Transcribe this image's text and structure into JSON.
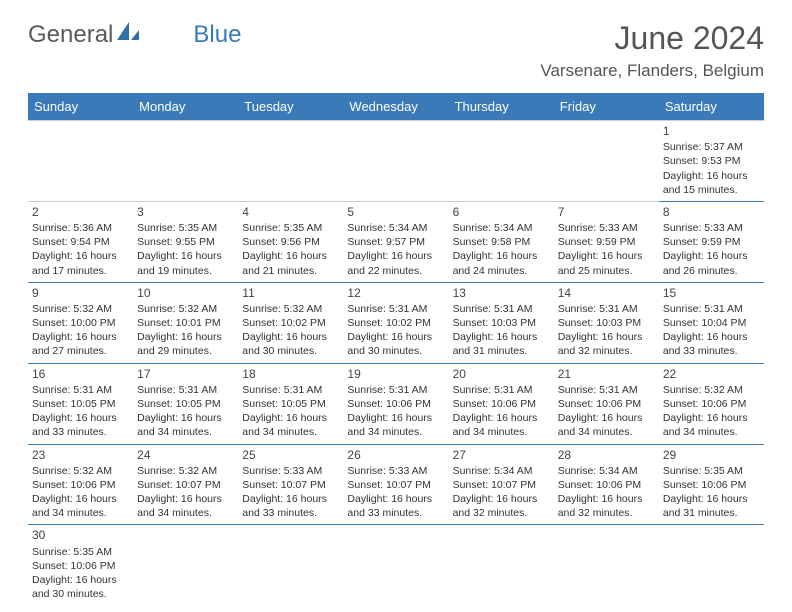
{
  "logo": {
    "text1": "General",
    "text2": "Blue"
  },
  "title": "June 2024",
  "location": "Varsenare, Flanders, Belgium",
  "colors": {
    "header_bg": "#3a7ab8",
    "header_text": "#ffffff",
    "border": "#3a7ab8",
    "text": "#333333",
    "title": "#555555"
  },
  "day_headers": [
    "Sunday",
    "Monday",
    "Tuesday",
    "Wednesday",
    "Thursday",
    "Friday",
    "Saturday"
  ],
  "weeks": [
    [
      null,
      null,
      null,
      null,
      null,
      null,
      {
        "n": "1",
        "sr": "Sunrise: 5:37 AM",
        "ss": "Sunset: 9:53 PM",
        "dl": "Daylight: 16 hours and 15 minutes."
      }
    ],
    [
      {
        "n": "2",
        "sr": "Sunrise: 5:36 AM",
        "ss": "Sunset: 9:54 PM",
        "dl": "Daylight: 16 hours and 17 minutes."
      },
      {
        "n": "3",
        "sr": "Sunrise: 5:35 AM",
        "ss": "Sunset: 9:55 PM",
        "dl": "Daylight: 16 hours and 19 minutes."
      },
      {
        "n": "4",
        "sr": "Sunrise: 5:35 AM",
        "ss": "Sunset: 9:56 PM",
        "dl": "Daylight: 16 hours and 21 minutes."
      },
      {
        "n": "5",
        "sr": "Sunrise: 5:34 AM",
        "ss": "Sunset: 9:57 PM",
        "dl": "Daylight: 16 hours and 22 minutes."
      },
      {
        "n": "6",
        "sr": "Sunrise: 5:34 AM",
        "ss": "Sunset: 9:58 PM",
        "dl": "Daylight: 16 hours and 24 minutes."
      },
      {
        "n": "7",
        "sr": "Sunrise: 5:33 AM",
        "ss": "Sunset: 9:59 PM",
        "dl": "Daylight: 16 hours and 25 minutes."
      },
      {
        "n": "8",
        "sr": "Sunrise: 5:33 AM",
        "ss": "Sunset: 9:59 PM",
        "dl": "Daylight: 16 hours and 26 minutes."
      }
    ],
    [
      {
        "n": "9",
        "sr": "Sunrise: 5:32 AM",
        "ss": "Sunset: 10:00 PM",
        "dl": "Daylight: 16 hours and 27 minutes."
      },
      {
        "n": "10",
        "sr": "Sunrise: 5:32 AM",
        "ss": "Sunset: 10:01 PM",
        "dl": "Daylight: 16 hours and 29 minutes."
      },
      {
        "n": "11",
        "sr": "Sunrise: 5:32 AM",
        "ss": "Sunset: 10:02 PM",
        "dl": "Daylight: 16 hours and 30 minutes."
      },
      {
        "n": "12",
        "sr": "Sunrise: 5:31 AM",
        "ss": "Sunset: 10:02 PM",
        "dl": "Daylight: 16 hours and 30 minutes."
      },
      {
        "n": "13",
        "sr": "Sunrise: 5:31 AM",
        "ss": "Sunset: 10:03 PM",
        "dl": "Daylight: 16 hours and 31 minutes."
      },
      {
        "n": "14",
        "sr": "Sunrise: 5:31 AM",
        "ss": "Sunset: 10:03 PM",
        "dl": "Daylight: 16 hours and 32 minutes."
      },
      {
        "n": "15",
        "sr": "Sunrise: 5:31 AM",
        "ss": "Sunset: 10:04 PM",
        "dl": "Daylight: 16 hours and 33 minutes."
      }
    ],
    [
      {
        "n": "16",
        "sr": "Sunrise: 5:31 AM",
        "ss": "Sunset: 10:05 PM",
        "dl": "Daylight: 16 hours and 33 minutes."
      },
      {
        "n": "17",
        "sr": "Sunrise: 5:31 AM",
        "ss": "Sunset: 10:05 PM",
        "dl": "Daylight: 16 hours and 34 minutes."
      },
      {
        "n": "18",
        "sr": "Sunrise: 5:31 AM",
        "ss": "Sunset: 10:05 PM",
        "dl": "Daylight: 16 hours and 34 minutes."
      },
      {
        "n": "19",
        "sr": "Sunrise: 5:31 AM",
        "ss": "Sunset: 10:06 PM",
        "dl": "Daylight: 16 hours and 34 minutes."
      },
      {
        "n": "20",
        "sr": "Sunrise: 5:31 AM",
        "ss": "Sunset: 10:06 PM",
        "dl": "Daylight: 16 hours and 34 minutes."
      },
      {
        "n": "21",
        "sr": "Sunrise: 5:31 AM",
        "ss": "Sunset: 10:06 PM",
        "dl": "Daylight: 16 hours and 34 minutes."
      },
      {
        "n": "22",
        "sr": "Sunrise: 5:32 AM",
        "ss": "Sunset: 10:06 PM",
        "dl": "Daylight: 16 hours and 34 minutes."
      }
    ],
    [
      {
        "n": "23",
        "sr": "Sunrise: 5:32 AM",
        "ss": "Sunset: 10:06 PM",
        "dl": "Daylight: 16 hours and 34 minutes."
      },
      {
        "n": "24",
        "sr": "Sunrise: 5:32 AM",
        "ss": "Sunset: 10:07 PM",
        "dl": "Daylight: 16 hours and 34 minutes."
      },
      {
        "n": "25",
        "sr": "Sunrise: 5:33 AM",
        "ss": "Sunset: 10:07 PM",
        "dl": "Daylight: 16 hours and 33 minutes."
      },
      {
        "n": "26",
        "sr": "Sunrise: 5:33 AM",
        "ss": "Sunset: 10:07 PM",
        "dl": "Daylight: 16 hours and 33 minutes."
      },
      {
        "n": "27",
        "sr": "Sunrise: 5:34 AM",
        "ss": "Sunset: 10:07 PM",
        "dl": "Daylight: 16 hours and 32 minutes."
      },
      {
        "n": "28",
        "sr": "Sunrise: 5:34 AM",
        "ss": "Sunset: 10:06 PM",
        "dl": "Daylight: 16 hours and 32 minutes."
      },
      {
        "n": "29",
        "sr": "Sunrise: 5:35 AM",
        "ss": "Sunset: 10:06 PM",
        "dl": "Daylight: 16 hours and 31 minutes."
      }
    ],
    [
      {
        "n": "30",
        "sr": "Sunrise: 5:35 AM",
        "ss": "Sunset: 10:06 PM",
        "dl": "Daylight: 16 hours and 30 minutes."
      },
      null,
      null,
      null,
      null,
      null,
      null
    ]
  ]
}
